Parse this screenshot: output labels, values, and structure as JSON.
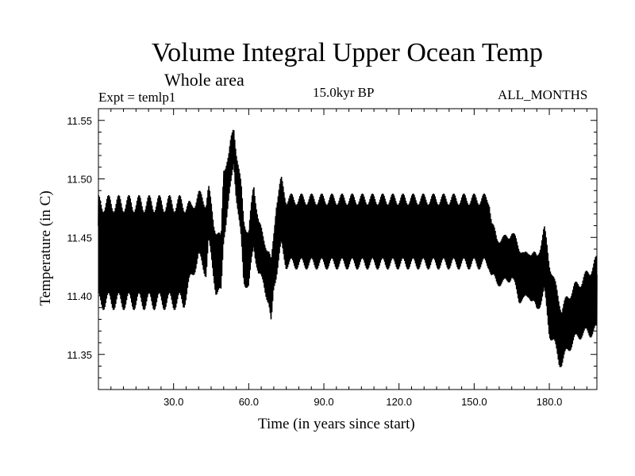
{
  "chart_data": {
    "type": "line",
    "title": "Volume Integral Upper Ocean Temp",
    "subtitle": "Whole area",
    "experiment": "Expt = temlp1",
    "period": "15.0kyr BP",
    "months": "ALL_MONTHS",
    "xlabel": "Time (in years since start)",
    "ylabel": "Temperature (in C)",
    "xlim": [
      0,
      199
    ],
    "ylim": [
      11.32,
      11.56
    ],
    "x_ticks": [
      30,
      60,
      90,
      120,
      150,
      180
    ],
    "x_tick_labels": [
      "30.0",
      "60.0",
      "90.0",
      "120.0",
      "150.0",
      "180.0"
    ],
    "y_ticks": [
      11.35,
      11.4,
      11.45,
      11.5,
      11.55
    ],
    "y_tick_labels": [
      "11.35",
      "11.40",
      "11.45",
      "11.50",
      "11.55"
    ],
    "grid": false,
    "samples_per_year": 12,
    "series": [
      {
        "name": "",
        "color": "#000000",
        "x": [
          0,
          20,
          34,
          37,
          40,
          43,
          44,
          46,
          47,
          49,
          50,
          52,
          53,
          54,
          55,
          57,
          58,
          60,
          62,
          64,
          66,
          68,
          69,
          70,
          71,
          73,
          75,
          80,
          100,
          120,
          140,
          156,
          157,
          159,
          162,
          165,
          168,
          170,
          172,
          175,
          178,
          180,
          182,
          184,
          185,
          187,
          190,
          193,
          196,
          199
        ],
        "centre": [
          11.437,
          11.437,
          11.437,
          11.445,
          11.46,
          11.45,
          11.47,
          11.44,
          11.43,
          11.425,
          11.48,
          11.5,
          11.515,
          11.53,
          11.505,
          11.47,
          11.44,
          11.43,
          11.47,
          11.44,
          11.43,
          11.415,
          11.4,
          11.43,
          11.45,
          11.47,
          11.455,
          11.455,
          11.455,
          11.455,
          11.455,
          11.455,
          11.44,
          11.43,
          11.43,
          11.435,
          11.42,
          11.415,
          11.42,
          11.41,
          11.43,
          11.4,
          11.385,
          11.37,
          11.365,
          11.375,
          11.385,
          11.39,
          11.395,
          11.4
        ],
        "half_range": [
          0.056,
          0.056,
          0.056,
          0.04,
          0.035,
          0.04,
          0.03,
          0.03,
          0.035,
          0.03,
          0.04,
          0.025,
          0.025,
          0.02,
          0.025,
          0.03,
          0.035,
          0.03,
          0.035,
          0.03,
          0.025,
          0.03,
          0.035,
          0.03,
          0.04,
          0.037,
          0.037,
          0.037,
          0.037,
          0.037,
          0.037,
          0.037,
          0.03,
          0.025,
          0.025,
          0.025,
          0.03,
          0.025,
          0.025,
          0.03,
          0.035,
          0.04,
          0.035,
          0.035,
          0.03,
          0.03,
          0.03,
          0.03,
          0.035,
          0.04
        ]
      }
    ]
  }
}
